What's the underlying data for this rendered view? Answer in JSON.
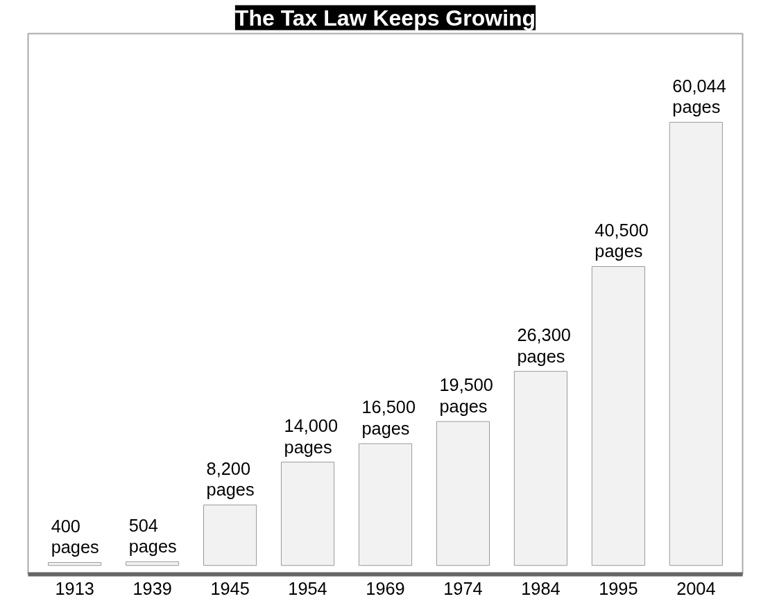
{
  "chart_data": {
    "type": "bar",
    "title": "The Tax Law Keeps Growing",
    "categories": [
      "1913",
      "1939",
      "1945",
      "1954",
      "1969",
      "1974",
      "1984",
      "1995",
      "2004"
    ],
    "values": [
      400,
      504,
      8200,
      14000,
      16500,
      19500,
      26300,
      40500,
      60044
    ],
    "value_labels": [
      "400\npages",
      "504\npages",
      "8,200\npages",
      "14,000\npages",
      "16,500\npages",
      "19,500\npages",
      "26,300\npages",
      "40,500\npages",
      "60,044\npages"
    ],
    "color": "#f2f2f2",
    "grid": false
  }
}
